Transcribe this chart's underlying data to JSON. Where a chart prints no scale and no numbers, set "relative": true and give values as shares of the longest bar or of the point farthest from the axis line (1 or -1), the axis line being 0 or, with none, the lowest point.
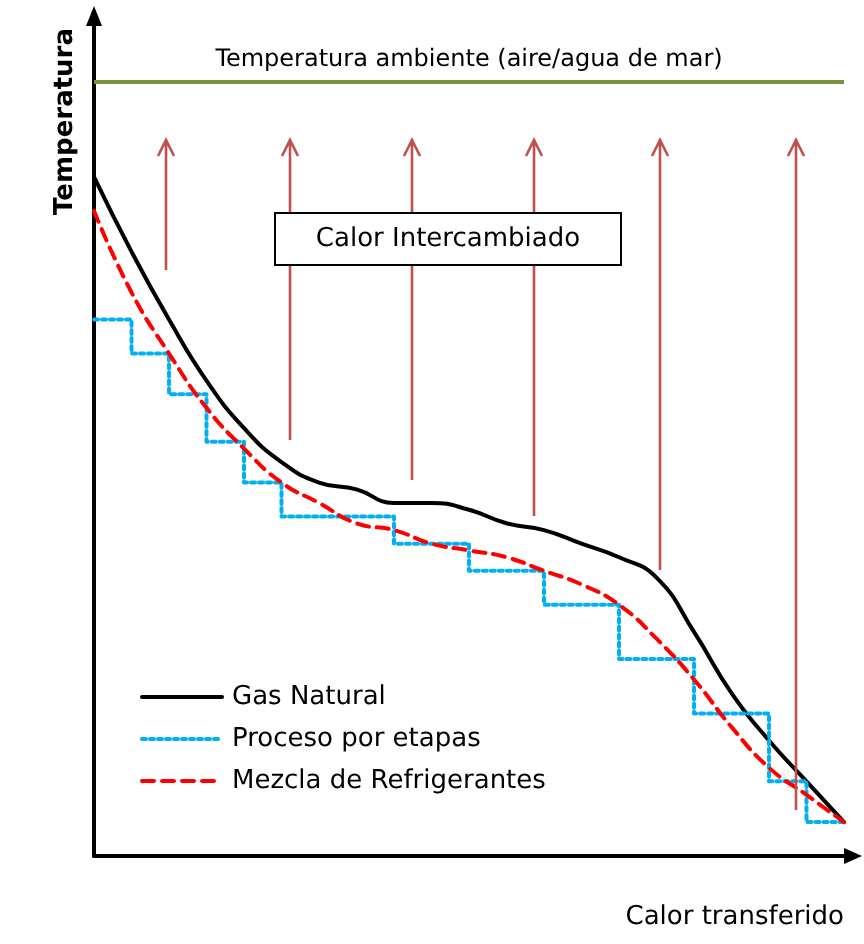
{
  "chart_data": {
    "type": "line",
    "relative": true,
    "xlabel": "Calor transferido",
    "ylabel": "Temperatura",
    "categories": [
      null,
      null,
      null,
      null,
      null,
      null,
      null,
      null,
      null,
      null,
      null,
      null,
      null,
      null,
      null,
      null,
      null,
      null,
      null,
      null,
      null
    ],
    "series": [
      {
        "name": "Gas Natural",
        "color": "#000000",
        "line_style": "solid",
        "values": [
          1.0,
          0.89,
          0.79,
          0.7,
          0.63,
          0.58,
          0.55,
          0.54,
          0.52,
          0.52,
          0.51,
          0.49,
          0.48,
          0.46,
          0.44,
          0.41,
          0.33,
          0.24,
          0.17,
          0.11,
          0.05
        ]
      },
      {
        "name": "Proceso por etapas",
        "type": "step",
        "color": "#00b0f0",
        "line_style": "dotted",
        "values": [
          0.79,
          0.74,
          0.68,
          0.61,
          0.55,
          0.5,
          0.5,
          0.5,
          0.46,
          0.46,
          0.42,
          0.42,
          0.37,
          0.37,
          0.29,
          0.29,
          0.21,
          0.21,
          0.11,
          0.05,
          0.05
        ]
      },
      {
        "name": "Mezcla de Refrigerantes",
        "color": "#ff0000",
        "line_style": "dashed",
        "values": [
          0.95,
          0.83,
          0.74,
          0.66,
          0.6,
          0.55,
          0.52,
          0.49,
          0.48,
          0.46,
          0.45,
          0.44,
          0.42,
          0.4,
          0.37,
          0.32,
          0.26,
          0.19,
          0.13,
          0.09,
          0.05
        ]
      }
    ],
    "ref_lines": [
      {
        "axis": "y",
        "value": 1.14,
        "label": "Temperatura ambiente (aire/agua de mar)",
        "color": "#77933c"
      }
    ],
    "annotations": [
      "Calor Intercambiado"
    ],
    "legend": "bottom left",
    "marker": "none",
    "grid": false
  }
}
